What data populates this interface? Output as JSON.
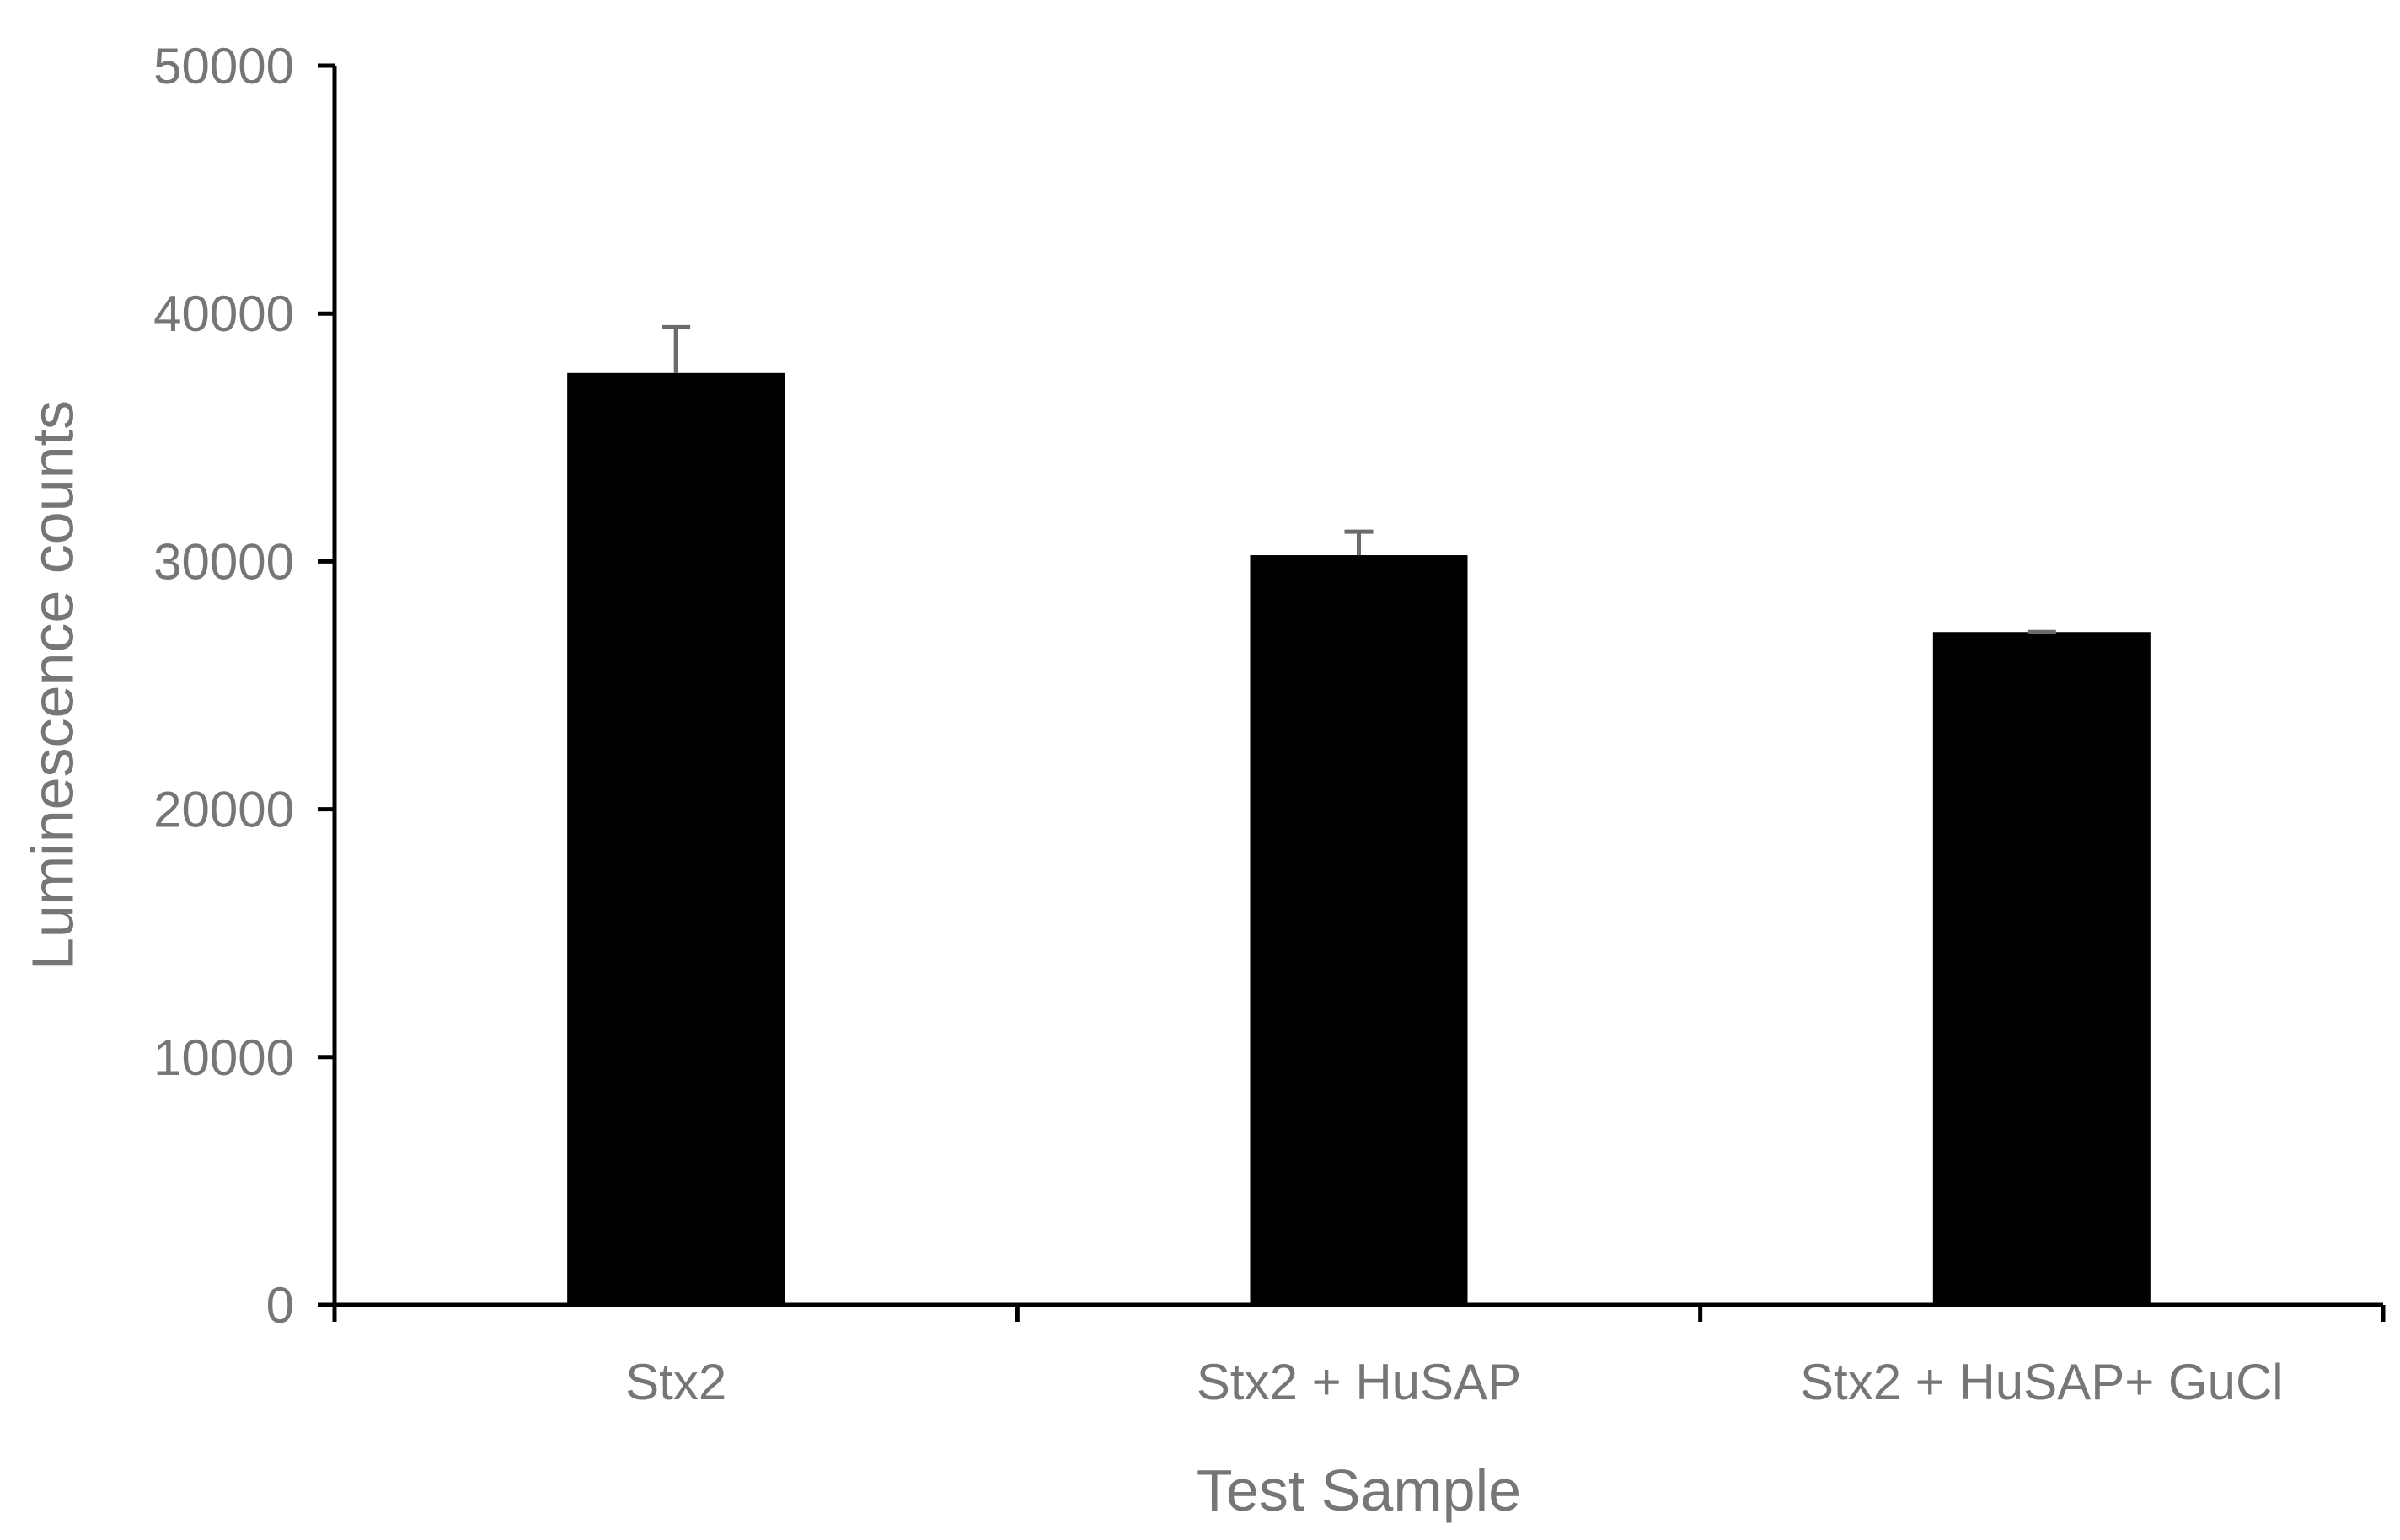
{
  "chart_data": {
    "type": "bar",
    "title": "",
    "xlabel": "Test Sample",
    "ylabel": "Luminescence counts",
    "categories": [
      "Stx2",
      "Stx2 + HuSAP",
      "Stx2 + HuSAP+ GuCl"
    ],
    "series": [
      {
        "values": [
          37600,
          30250,
          27150
        ],
        "error_plus": [
          1850,
          950,
          0
        ]
      }
    ],
    "ylim": [
      0,
      50000
    ],
    "yticks": [
      0,
      10000,
      20000,
      30000,
      40000,
      50000
    ],
    "grid": false,
    "legend": "none",
    "colors": {
      "bar": "#000000",
      "error_bar": "#6b6b6b",
      "axis": "#000000",
      "text": "#767676"
    }
  }
}
